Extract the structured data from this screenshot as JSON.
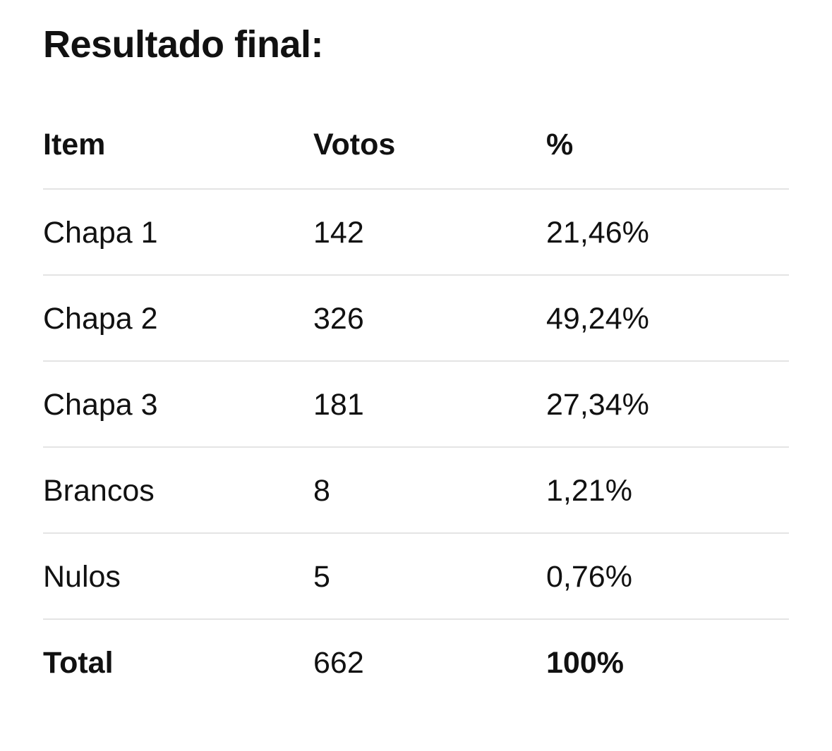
{
  "title": "Resultado final:",
  "table": {
    "headers": [
      "Item",
      "Votos",
      "%"
    ],
    "rows": [
      {
        "item": "Chapa 1",
        "votos": "142",
        "pct": "21,46%"
      },
      {
        "item": "Chapa 2",
        "votos": "326",
        "pct": "49,24%"
      },
      {
        "item": "Chapa 3",
        "votos": "181",
        "pct": "27,34%"
      },
      {
        "item": "Brancos",
        "votos": "8",
        "pct": "1,21%"
      },
      {
        "item": "Nulos",
        "votos": "5",
        "pct": "0,76%"
      },
      {
        "item": "Total",
        "votos": "662",
        "pct": "100%"
      }
    ]
  }
}
